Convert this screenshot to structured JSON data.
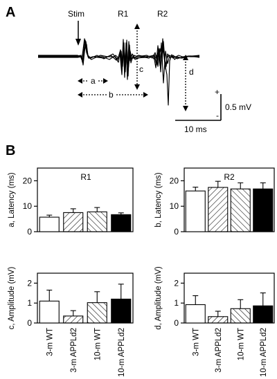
{
  "panel_a": {
    "letter": "A",
    "labels": {
      "stim": "Stim",
      "r1": "R1",
      "r2": "R2",
      "a": "a",
      "b": "b",
      "c": "c",
      "d": "d"
    },
    "scale": {
      "voltage": "0.5 mV",
      "time": "10 ms",
      "plus": "+",
      "minus": "-"
    }
  },
  "panel_b": {
    "letter": "B",
    "categories": [
      "3-m WT",
      "3-m APPLd2",
      "10-m WT",
      "10-m APPLd2"
    ]
  },
  "chart_data": [
    {
      "type": "bar",
      "title": "R1",
      "ylabel": "a, Latency (ms)",
      "ylim": [
        0,
        25
      ],
      "yticks": [
        0,
        10,
        20
      ],
      "categories": [
        "3-m WT",
        "3-m APPLd2",
        "10-m WT",
        "10-m APPLd2"
      ],
      "values": [
        5.7,
        7.5,
        7.8,
        6.7
      ],
      "errors": [
        0.8,
        1.5,
        1.7,
        0.7
      ],
      "fills": [
        "white",
        "back-hatch",
        "forward-hatch",
        "black"
      ]
    },
    {
      "type": "bar",
      "title": "R2",
      "ylabel": "b, Latency (ms)",
      "ylim": [
        0,
        25
      ],
      "yticks": [
        0,
        10,
        20
      ],
      "categories": [
        "3-m WT",
        "3-m APPLd2",
        "10-m WT",
        "10-m APPLd2"
      ],
      "values": [
        16.0,
        17.4,
        16.8,
        16.8
      ],
      "errors": [
        1.5,
        2.4,
        2.4,
        2.4
      ],
      "fills": [
        "white",
        "back-hatch",
        "forward-hatch",
        "black"
      ]
    },
    {
      "type": "bar",
      "title": "",
      "ylabel": "c, Amplitude (mV)",
      "ylim": [
        0,
        2.5
      ],
      "yticks": [
        0,
        1,
        2
      ],
      "categories": [
        "3-m WT",
        "3-m APPLd2",
        "10-m WT",
        "10-m APPLd2"
      ],
      "values": [
        1.1,
        0.35,
        1.02,
        1.2
      ],
      "errors": [
        0.55,
        0.27,
        0.55,
        0.75
      ],
      "fills": [
        "white",
        "back-hatch",
        "forward-hatch",
        "black"
      ]
    },
    {
      "type": "bar",
      "title": "",
      "ylabel": "d, Amplitude (mV)",
      "ylim": [
        0,
        2.5
      ],
      "yticks": [
        0,
        1,
        2
      ],
      "categories": [
        "3-m WT",
        "3-m APPLd2",
        "10-m WT",
        "10-m APPLd2"
      ],
      "values": [
        0.92,
        0.32,
        0.72,
        0.86
      ],
      "errors": [
        0.45,
        0.27,
        0.45,
        0.65
      ],
      "fills": [
        "white",
        "back-hatch",
        "forward-hatch",
        "black"
      ]
    }
  ]
}
